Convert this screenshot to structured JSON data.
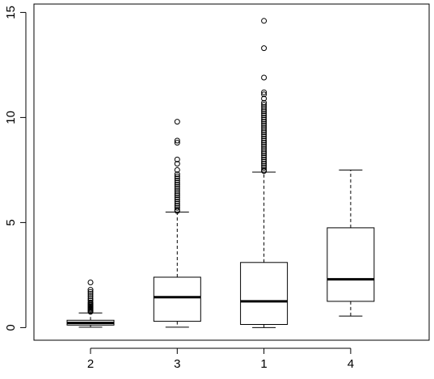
{
  "chart_data": {
    "type": "boxplot",
    "title": "",
    "xlabel": "",
    "ylabel": "",
    "ylim": [
      -0.6,
      15.4
    ],
    "y_ticks": [
      0,
      5,
      10,
      15
    ],
    "y_tick_labels": [
      "0",
      "5",
      "10",
      "15"
    ],
    "grid": false,
    "legend": "none",
    "categories": [
      "2",
      "3",
      "1",
      "4"
    ],
    "boxes": [
      {
        "label": "2",
        "lower_whisker": 0.02,
        "q1": 0.12,
        "median": 0.22,
        "q3": 0.35,
        "upper_whisker": 0.7,
        "outliers": [
          0.75,
          0.8,
          0.85,
          0.9,
          0.95,
          1.0,
          1.05,
          1.1,
          1.15,
          1.2,
          1.3,
          1.4,
          1.5,
          1.6,
          1.7,
          1.8,
          2.15
        ]
      },
      {
        "label": "3",
        "lower_whisker": 0.02,
        "q1": 0.3,
        "median": 1.45,
        "q3": 2.4,
        "upper_whisker": 5.5,
        "outliers": [
          5.55,
          5.6,
          5.7,
          5.8,
          5.9,
          6.0,
          6.1,
          6.2,
          6.3,
          6.4,
          6.5,
          6.6,
          6.7,
          6.8,
          6.9,
          7.0,
          7.1,
          7.2,
          7.3,
          7.5,
          7.8,
          8.0,
          8.8,
          8.9,
          9.8
        ]
      },
      {
        "label": "1",
        "lower_whisker": 0.0,
        "q1": 0.15,
        "median": 1.25,
        "q3": 3.1,
        "upper_whisker": 7.4,
        "outliers": [
          7.45,
          7.5,
          7.6,
          7.7,
          7.8,
          7.9,
          8.0,
          8.1,
          8.2,
          8.3,
          8.4,
          8.5,
          8.6,
          8.7,
          8.8,
          8.9,
          9.0,
          9.1,
          9.2,
          9.3,
          9.4,
          9.5,
          9.6,
          9.7,
          9.8,
          9.9,
          10.0,
          10.1,
          10.2,
          10.3,
          10.4,
          10.5,
          10.6,
          10.7,
          10.9,
          11.1,
          11.2,
          11.9,
          13.3,
          14.6
        ]
      },
      {
        "label": "4",
        "lower_whisker": 0.55,
        "q1": 1.25,
        "median": 2.3,
        "q3": 4.75,
        "upper_whisker": 7.5,
        "outliers": []
      }
    ]
  }
}
